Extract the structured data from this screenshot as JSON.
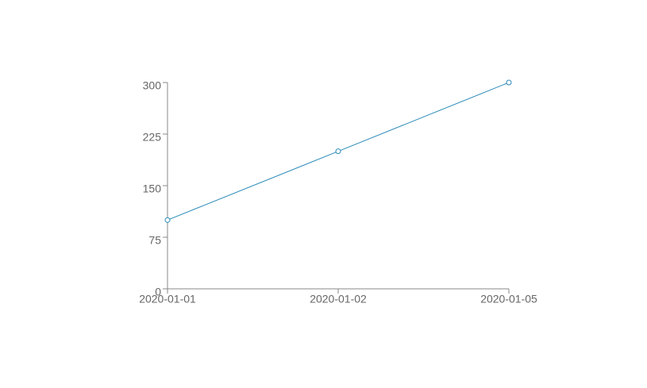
{
  "chart_data": {
    "type": "line",
    "categories": [
      "2020-01-01",
      "2020-01-02",
      "2020-01-05"
    ],
    "values": [
      100,
      200,
      300
    ],
    "color": "#2a8ab8",
    "ylim": [
      0,
      300
    ],
    "yticks": [
      0,
      75,
      150,
      225,
      300
    ],
    "grid": false
  }
}
